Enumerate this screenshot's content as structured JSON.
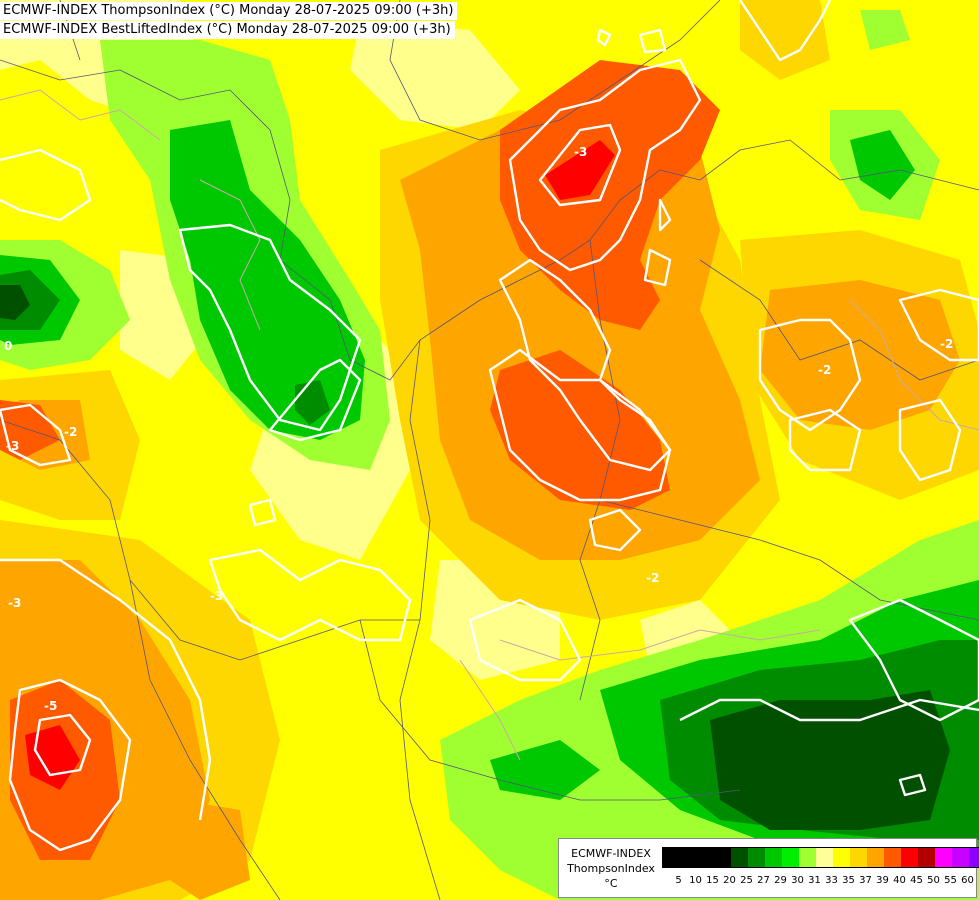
{
  "titles": {
    "line1": "ECMWF-INDEX ThompsonIndex (°C) Monday 28-07-2025 09:00 (+3h)",
    "line2": "ECMWF-INDEX BestLiftedIndex (°C) Monday 28-07-2025 09:00 (+3h)"
  },
  "contour_labels": [
    "-3",
    "-3",
    "-2",
    "0",
    "-3",
    "-5",
    "-2",
    "-2",
    "-3",
    "-2"
  ],
  "legend": {
    "source": "ECMWF-INDEX",
    "variable": "ThompsonIndex",
    "unit": "°C",
    "ticks": [
      "5",
      "10",
      "15",
      "20",
      "25",
      "27",
      "29",
      "30",
      "31",
      "33",
      "35",
      "37",
      "39",
      "40",
      "45",
      "50",
      "55",
      "60"
    ],
    "colors": [
      "#000000",
      "#000000",
      "#000000",
      "#000000",
      "#005000",
      "#008c00",
      "#00c800",
      "#00ee00",
      "#a0ff30",
      "#ffff99",
      "#ffff00",
      "#ffd700",
      "#ffa500",
      "#ff5a00",
      "#ff0000",
      "#b40000",
      "#ff00ff",
      "#c800ff",
      "#8c00ff",
      "#0000ff"
    ]
  },
  "colors": {
    "background": "#ffff00",
    "contour_line": "#ffffff"
  }
}
